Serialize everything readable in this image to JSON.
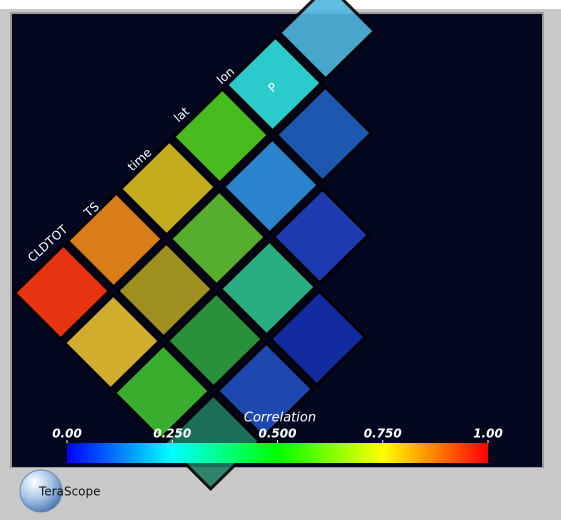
{
  "variables": [
    "CLDTOT",
    "TS",
    "time",
    "lat",
    "lon",
    "P"
  ],
  "colorbar": {
    "title": "Correlation",
    "lim": [
      0,
      1
    ],
    "ticks": [
      {
        "value": 0,
        "label": "0.00"
      },
      {
        "value": 0.25,
        "label": "0.250"
      },
      {
        "value": 0.5,
        "label": "0.500"
      },
      {
        "value": 0.75,
        "label": "0.750"
      },
      {
        "value": 1,
        "label": "1.00"
      }
    ]
  },
  "logo": {
    "text": "TeraScope"
  }
}
